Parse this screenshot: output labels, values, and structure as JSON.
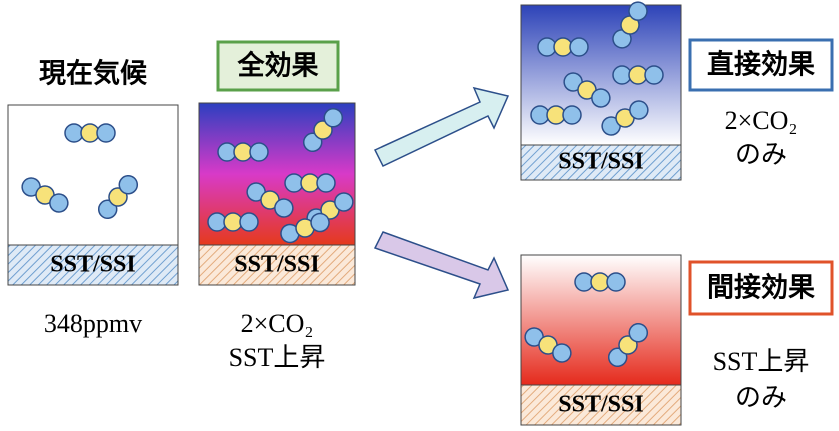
{
  "panels": {
    "current": {
      "title": "現在気候",
      "base": "SST/SSI",
      "caption": [
        "348ppmv"
      ]
    },
    "total": {
      "title": "全効果",
      "base": "SST/SSI",
      "caption": [
        "2×CO₂",
        "SST上昇"
      ]
    },
    "direct": {
      "title": "直接効果",
      "base": "SST/SSI",
      "caption": [
        "2×CO₂",
        "のみ"
      ]
    },
    "indirect": {
      "title": "間接効果",
      "base": "SST/SSI",
      "caption": [
        "SST上昇",
        "のみ"
      ]
    }
  }
}
